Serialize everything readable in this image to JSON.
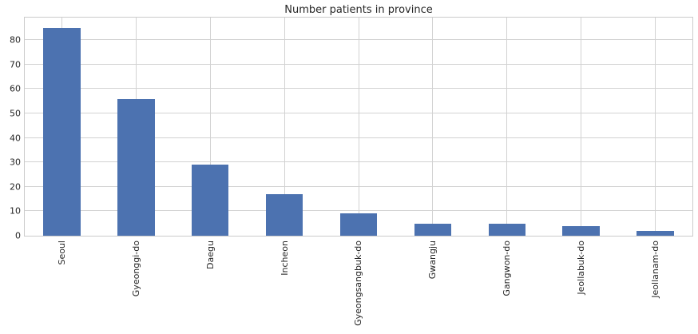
{
  "chart_data": {
    "type": "bar",
    "title": "Number patients in province",
    "xlabel": "",
    "ylabel": "",
    "categories": [
      "Seoul",
      "Gyeonggi-do",
      "Daegu",
      "Incheon",
      "Gyeongsangbuk-do",
      "Gwangju",
      "Gangwon-do",
      "Jeollabuk-do",
      "Jeollanam-do"
    ],
    "values": [
      85,
      56,
      29,
      17,
      9,
      5,
      5,
      4,
      2
    ],
    "yticks": [
      0,
      10,
      20,
      30,
      40,
      50,
      60,
      70,
      80
    ],
    "ylim": [
      0,
      89.25
    ],
    "grid": true,
    "legend": false,
    "bar_width_ratio": 0.5,
    "colors": {
      "bar": "#4c72b0",
      "grid": "#d2d2d2",
      "spine": "#cccccc",
      "text": "#262626",
      "background": "#ffffff"
    }
  }
}
